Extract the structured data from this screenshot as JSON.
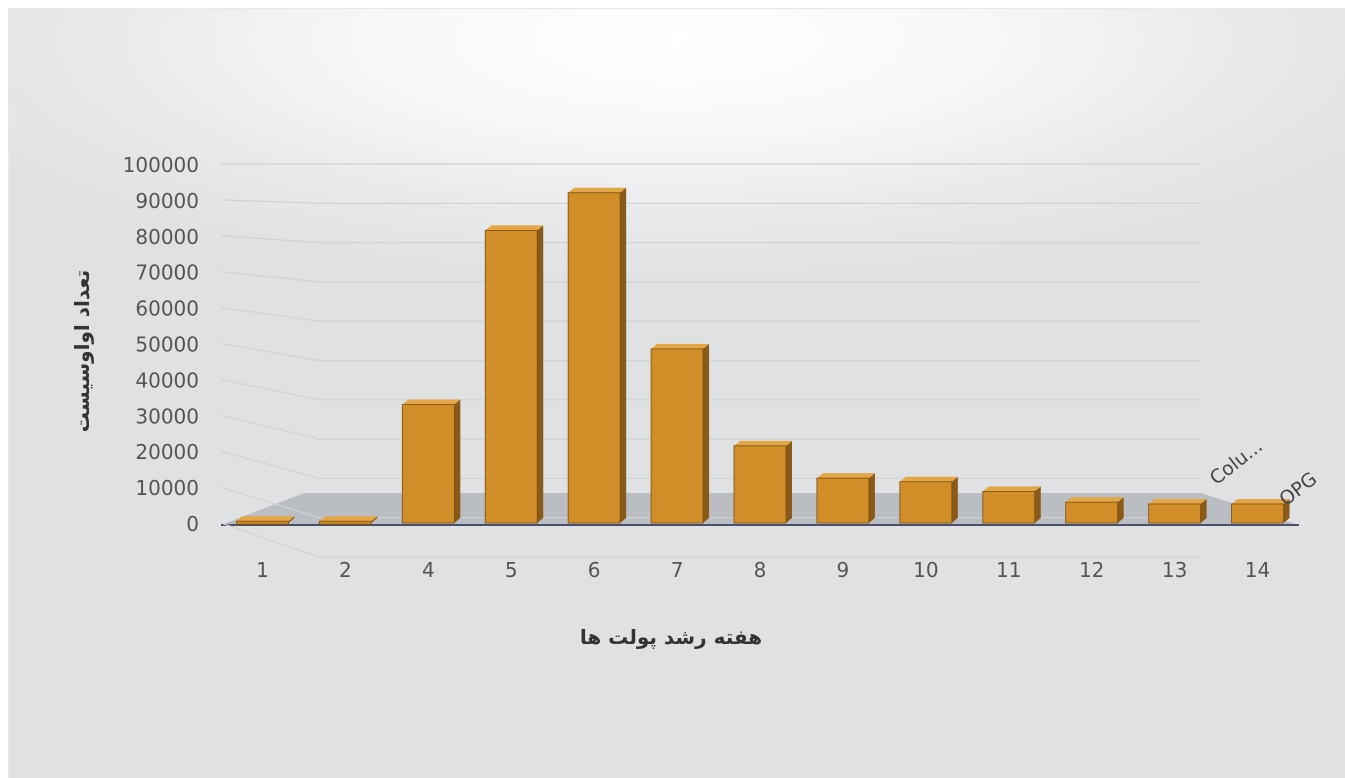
{
  "chart_data": {
    "type": "bar",
    "three_d": true,
    "categories": [
      "1",
      "2",
      "4",
      "5",
      "6",
      "7",
      "8",
      "9",
      "10",
      "11",
      "12",
      "13",
      "14"
    ],
    "series": [
      {
        "name": "OPG",
        "values": [
          500,
          500,
          33000,
          81500,
          92000,
          48500,
          21500,
          12500,
          11500,
          8800,
          5800,
          5300,
          5300
        ]
      }
    ],
    "series_axis_labels": [
      "Colu...",
      "OPG"
    ],
    "xlabel": "هفته رشد پولت ها",
    "ylabel": "تعداد اواوسیست",
    "ylim": [
      0,
      100000
    ],
    "yticks": [
      "0",
      "10000",
      "20000",
      "30000",
      "40000",
      "50000",
      "60000",
      "70000",
      "80000",
      "90000",
      "100000"
    ],
    "grid": true,
    "legend": "none",
    "colors": {
      "bar_front": "#d08d28",
      "bar_side": "#8a5a18",
      "bar_top": "#e3a748",
      "floor": "#9aa0a6"
    }
  }
}
